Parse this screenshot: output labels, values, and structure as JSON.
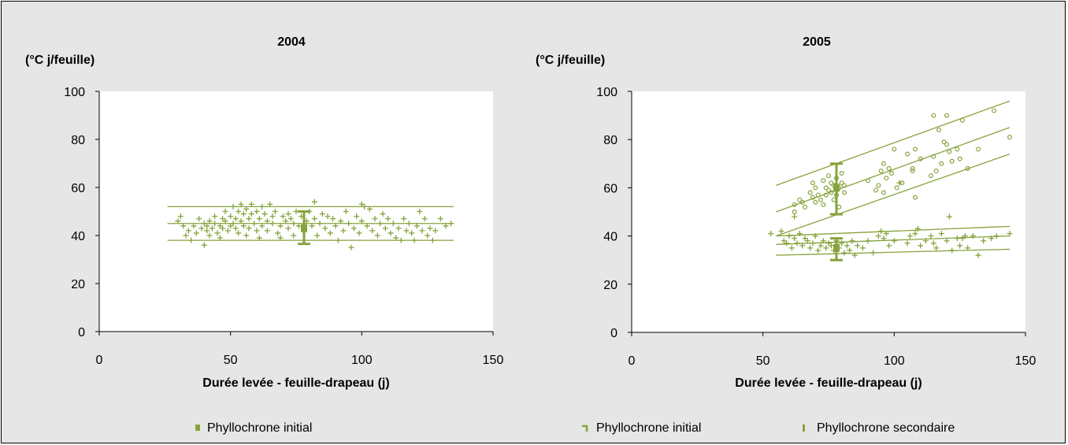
{
  "colors": {
    "series": "#86a33c",
    "plot_bg": "#ffffff",
    "panel_bg": "#e6e6e6"
  },
  "chart_data": [
    {
      "type": "scatter",
      "title": "2004",
      "ylabel": "(°C j/feuille)",
      "xlabel": "Durée levée - feuille-drapeau (j)",
      "xlim": [
        0,
        150
      ],
      "ylim": [
        0,
        100
      ],
      "xticks": [
        "0",
        "50",
        "100",
        "150"
      ],
      "yticks": [
        "0",
        "20",
        "40",
        "60",
        "80",
        "100"
      ],
      "grid": false,
      "legend_position": "bottom",
      "legend": [
        "Phyllochrone initial"
      ],
      "points_plus": [
        [
          30,
          46
        ],
        [
          31,
          48
        ],
        [
          32,
          44
        ],
        [
          33,
          40
        ],
        [
          34,
          42
        ],
        [
          35,
          38
        ],
        [
          36,
          44
        ],
        [
          37,
          41
        ],
        [
          38,
          47
        ],
        [
          39,
          43
        ],
        [
          40,
          45
        ],
        [
          40,
          36
        ],
        [
          41,
          42
        ],
        [
          41,
          44
        ],
        [
          42,
          46
        ],
        [
          42,
          40
        ],
        [
          43,
          43
        ],
        [
          44,
          48
        ],
        [
          44,
          45
        ],
        [
          45,
          41
        ],
        [
          46,
          44
        ],
        [
          46,
          39
        ],
        [
          47,
          47
        ],
        [
          47,
          43
        ],
        [
          48,
          50
        ],
        [
          48,
          46
        ],
        [
          49,
          42
        ],
        [
          50,
          44
        ],
        [
          50,
          48
        ],
        [
          51,
          52
        ],
        [
          51,
          45
        ],
        [
          52,
          47
        ],
        [
          52,
          43
        ],
        [
          53,
          50
        ],
        [
          53,
          41
        ],
        [
          54,
          53
        ],
        [
          54,
          46
        ],
        [
          55,
          49
        ],
        [
          55,
          44
        ],
        [
          56,
          51
        ],
        [
          56,
          40
        ],
        [
          57,
          47
        ],
        [
          57,
          43
        ],
        [
          58,
          53
        ],
        [
          58,
          49
        ],
        [
          59,
          45
        ],
        [
          60,
          42
        ],
        [
          60,
          50
        ],
        [
          61,
          47
        ],
        [
          61,
          39
        ],
        [
          62,
          52
        ],
        [
          62,
          44
        ],
        [
          63,
          49
        ],
        [
          64,
          46
        ],
        [
          64,
          42
        ],
        [
          65,
          53
        ],
        [
          66,
          48
        ],
        [
          66,
          45
        ],
        [
          67,
          50
        ],
        [
          68,
          41
        ],
        [
          69,
          44
        ],
        [
          69,
          39
        ],
        [
          70,
          48
        ],
        [
          71,
          46
        ],
        [
          72,
          43
        ],
        [
          72,
          49
        ],
        [
          73,
          47
        ],
        [
          74,
          40
        ],
        [
          74,
          45
        ],
        [
          75,
          50
        ],
        [
          76,
          44
        ],
        [
          77,
          48
        ],
        [
          78,
          42
        ],
        [
          79,
          46
        ],
        [
          80,
          50
        ],
        [
          81,
          44
        ],
        [
          82,
          54
        ],
        [
          82,
          47
        ],
        [
          83,
          40
        ],
        [
          84,
          45
        ],
        [
          85,
          49
        ],
        [
          86,
          43
        ],
        [
          87,
          48
        ],
        [
          88,
          41
        ],
        [
          89,
          47
        ],
        [
          90,
          44
        ],
        [
          91,
          38
        ],
        [
          92,
          46
        ],
        [
          93,
          42
        ],
        [
          94,
          50
        ],
        [
          95,
          45
        ],
        [
          96,
          35
        ],
        [
          97,
          43
        ],
        [
          98,
          48
        ],
        [
          99,
          41
        ],
        [
          100,
          53
        ],
        [
          100,
          46
        ],
        [
          101,
          52
        ],
        [
          102,
          44
        ],
        [
          103,
          51
        ],
        [
          104,
          42
        ],
        [
          105,
          47
        ],
        [
          106,
          40
        ],
        [
          107,
          45
        ],
        [
          108,
          49
        ],
        [
          109,
          43
        ],
        [
          110,
          47
        ],
        [
          111,
          41
        ],
        [
          112,
          45
        ],
        [
          113,
          39
        ],
        [
          114,
          43
        ],
        [
          115,
          38
        ],
        [
          116,
          47
        ],
        [
          117,
          42
        ],
        [
          118,
          45
        ],
        [
          119,
          41
        ],
        [
          120,
          38
        ],
        [
          121,
          44
        ],
        [
          122,
          50
        ],
        [
          123,
          42
        ],
        [
          124,
          47
        ],
        [
          125,
          40
        ],
        [
          126,
          43
        ],
        [
          127,
          38
        ],
        [
          128,
          42
        ],
        [
          130,
          47
        ],
        [
          132,
          44
        ],
        [
          134,
          45
        ]
      ],
      "lines": [
        {
          "x": [
            26,
            135
          ],
          "y": [
            52,
            52
          ]
        },
        {
          "x": [
            26,
            135
          ],
          "y": [
            45,
            45
          ]
        },
        {
          "x": [
            26,
            135
          ],
          "y": [
            38,
            38
          ]
        }
      ],
      "error_bars": [
        {
          "x": 78,
          "y": 43,
          "low": 36.5,
          "high": 50
        }
      ]
    },
    {
      "type": "scatter",
      "title": "2005",
      "ylabel": "(°C j/feuille)",
      "xlabel": "Durée levée - feuille-drapeau (j)",
      "xlim": [
        0,
        150
      ],
      "ylim": [
        0,
        100
      ],
      "xticks": [
        "0",
        "50",
        "100",
        "150"
      ],
      "yticks": [
        "0",
        "20",
        "40",
        "60",
        "80",
        "100"
      ],
      "grid": false,
      "legend_position": "bottom",
      "legend": [
        "Phyllochrone initial",
        "Phyllochrone secondaire"
      ],
      "points_circle": [
        [
          62,
          53
        ],
        [
          62,
          50
        ],
        [
          64,
          55
        ],
        [
          65,
          54
        ],
        [
          66,
          52
        ],
        [
          68,
          58
        ],
        [
          69,
          62
        ],
        [
          69,
          56
        ],
        [
          70,
          60
        ],
        [
          70,
          54
        ],
        [
          71,
          57
        ],
        [
          72,
          55
        ],
        [
          73,
          63
        ],
        [
          73,
          53
        ],
        [
          74,
          60
        ],
        [
          74,
          57
        ],
        [
          75,
          65
        ],
        [
          75,
          59
        ],
        [
          76,
          62
        ],
        [
          76,
          58
        ],
        [
          77,
          55
        ],
        [
          77,
          61
        ],
        [
          78,
          64
        ],
        [
          78,
          57
        ],
        [
          79,
          60
        ],
        [
          79,
          52
        ],
        [
          80,
          66
        ],
        [
          80,
          62
        ],
        [
          81,
          58
        ],
        [
          81,
          61
        ],
        [
          90,
          63
        ],
        [
          93,
          59
        ],
        [
          94,
          61
        ],
        [
          95,
          67
        ],
        [
          96,
          70
        ],
        [
          96,
          58
        ],
        [
          97,
          64
        ],
        [
          98,
          68
        ],
        [
          99,
          66
        ],
        [
          100,
          76
        ],
        [
          101,
          60
        ],
        [
          103,
          62
        ],
        [
          105,
          74
        ],
        [
          107,
          67
        ],
        [
          107,
          68
        ],
        [
          108,
          56
        ],
        [
          108,
          76
        ],
        [
          110,
          72
        ],
        [
          114,
          65
        ],
        [
          115,
          90
        ],
        [
          115,
          73
        ],
        [
          116,
          67
        ],
        [
          117,
          84
        ],
        [
          118,
          70
        ],
        [
          119,
          79
        ],
        [
          120,
          90
        ],
        [
          120,
          78
        ],
        [
          121,
          75
        ],
        [
          122,
          71
        ],
        [
          124,
          76
        ],
        [
          125,
          72
        ],
        [
          126,
          88
        ],
        [
          128,
          68
        ],
        [
          132,
          76
        ],
        [
          138,
          92
        ],
        [
          144,
          81
        ]
      ],
      "points_plus": [
        [
          53,
          41
        ],
        [
          57,
          42
        ],
        [
          58,
          38
        ],
        [
          59,
          37
        ],
        [
          60,
          40
        ],
        [
          61,
          35
        ],
        [
          62,
          39
        ],
        [
          62,
          48
        ],
        [
          63,
          37
        ],
        [
          64,
          41
        ],
        [
          65,
          36
        ],
        [
          66,
          39
        ],
        [
          67,
          38
        ],
        [
          68,
          35
        ],
        [
          69,
          37
        ],
        [
          70,
          40
        ],
        [
          71,
          34
        ],
        [
          72,
          36
        ],
        [
          73,
          38
        ],
        [
          74,
          35
        ],
        [
          75,
          37
        ],
        [
          76,
          36
        ],
        [
          77,
          34
        ],
        [
          78,
          38
        ],
        [
          79,
          35
        ],
        [
          80,
          37
        ],
        [
          81,
          33
        ],
        [
          82,
          36
        ],
        [
          83,
          34
        ],
        [
          84,
          38
        ],
        [
          85,
          32
        ],
        [
          86,
          36
        ],
        [
          88,
          35
        ],
        [
          90,
          38
        ],
        [
          92,
          33
        ],
        [
          94,
          40
        ],
        [
          95,
          42
        ],
        [
          96,
          39
        ],
        [
          97,
          41
        ],
        [
          98,
          36
        ],
        [
          100,
          38
        ],
        [
          102,
          62
        ],
        [
          105,
          37
        ],
        [
          106,
          40
        ],
        [
          108,
          41
        ],
        [
          109,
          43
        ],
        [
          110,
          36
        ],
        [
          112,
          38
        ],
        [
          114,
          40
        ],
        [
          115,
          37
        ],
        [
          116,
          35
        ],
        [
          118,
          41
        ],
        [
          120,
          38
        ],
        [
          121,
          48
        ],
        [
          122,
          34
        ],
        [
          124,
          39
        ],
        [
          125,
          36
        ],
        [
          126,
          39
        ],
        [
          127,
          40
        ],
        [
          128,
          35
        ],
        [
          130,
          40
        ],
        [
          132,
          32
        ],
        [
          134,
          38
        ],
        [
          137,
          39
        ],
        [
          139,
          40
        ],
        [
          144,
          41
        ]
      ],
      "lines": [
        {
          "x": [
            55,
            144
          ],
          "y": [
            61,
            96
          ]
        },
        {
          "x": [
            55,
            144
          ],
          "y": [
            50,
            85
          ]
        },
        {
          "x": [
            55,
            144
          ],
          "y": [
            40,
            74
          ]
        },
        {
          "x": [
            55,
            144
          ],
          "y": [
            40,
            44
          ]
        },
        {
          "x": [
            55,
            144
          ],
          "y": [
            36.5,
            40
          ]
        },
        {
          "x": [
            55,
            144
          ],
          "y": [
            32,
            34.5
          ]
        }
      ],
      "error_bars": [
        {
          "x": 78,
          "y": 60,
          "low": 49,
          "high": 70
        },
        {
          "x": 78,
          "y": 35,
          "low": 30,
          "high": 39
        }
      ]
    }
  ]
}
